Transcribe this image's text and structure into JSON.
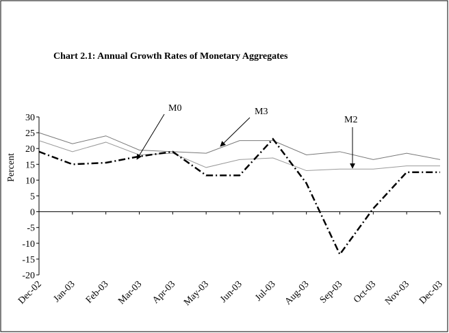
{
  "chart_data": {
    "type": "line",
    "title": "Chart 2.1: Annual Growth Rates of Monetary Aggregates",
    "y_label": "Percent",
    "categories": [
      "Dec-02",
      "Jan-03",
      "Feb-03",
      "Mar-03",
      "Apr-03",
      "May-03",
      "Jun-03",
      "Jul-03",
      "Aug-03",
      "Sep-03",
      "Oct-03",
      "Nov-03",
      "Dec-03"
    ],
    "series": [
      {
        "name": "M3",
        "color": "#777777",
        "values": [
          25,
          21.5,
          24,
          19.5,
          19,
          18.5,
          22.5,
          22.5,
          18,
          19,
          16.5,
          18.5,
          16.5
        ]
      },
      {
        "name": "M2",
        "color": "#999999",
        "values": [
          22.5,
          19,
          22,
          18,
          18.5,
          14,
          16.5,
          17,
          13,
          13.5,
          13.5,
          14.5,
          14.5
        ]
      },
      {
        "name": "M0",
        "color": "#000000",
        "values": [
          19,
          15,
          15.5,
          17.5,
          19,
          11.5,
          11.5,
          23,
          9,
          -13.5,
          1,
          12.5,
          12.5
        ]
      }
    ],
    "ylim": [
      -20,
      30
    ],
    "yticks": [
      -20,
      -15,
      -10,
      -5,
      0,
      5,
      10,
      15,
      20,
      25,
      30
    ]
  }
}
